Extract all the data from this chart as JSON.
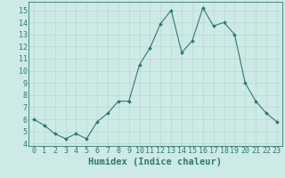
{
  "x": [
    0,
    1,
    2,
    3,
    4,
    5,
    6,
    7,
    8,
    9,
    10,
    11,
    12,
    13,
    14,
    15,
    16,
    17,
    18,
    19,
    20,
    21,
    22,
    23
  ],
  "y": [
    6.0,
    5.5,
    4.8,
    4.4,
    4.8,
    4.4,
    5.8,
    6.5,
    7.5,
    7.5,
    10.5,
    11.9,
    13.9,
    15.0,
    11.5,
    12.5,
    15.2,
    13.7,
    14.0,
    13.0,
    9.0,
    7.5,
    6.5,
    5.8
  ],
  "xlabel": "Humidex (Indice chaleur)",
  "xlim": [
    -0.5,
    23.5
  ],
  "ylim": [
    3.8,
    15.7
  ],
  "yticks": [
    4,
    5,
    6,
    7,
    8,
    9,
    10,
    11,
    12,
    13,
    14,
    15
  ],
  "xticks": [
    0,
    1,
    2,
    3,
    4,
    5,
    6,
    7,
    8,
    9,
    10,
    11,
    12,
    13,
    14,
    15,
    16,
    17,
    18,
    19,
    20,
    21,
    22,
    23
  ],
  "line_color": "#2d7a6e",
  "marker_color": "#2d7a6e",
  "bg_color": "#ceeae6",
  "grid_color": "#b8d8d4",
  "tick_label_color": "#2d7a6e",
  "axis_label_color": "#2d7a6e",
  "xlabel_fontsize": 7.5,
  "tick_fontsize": 6.0
}
